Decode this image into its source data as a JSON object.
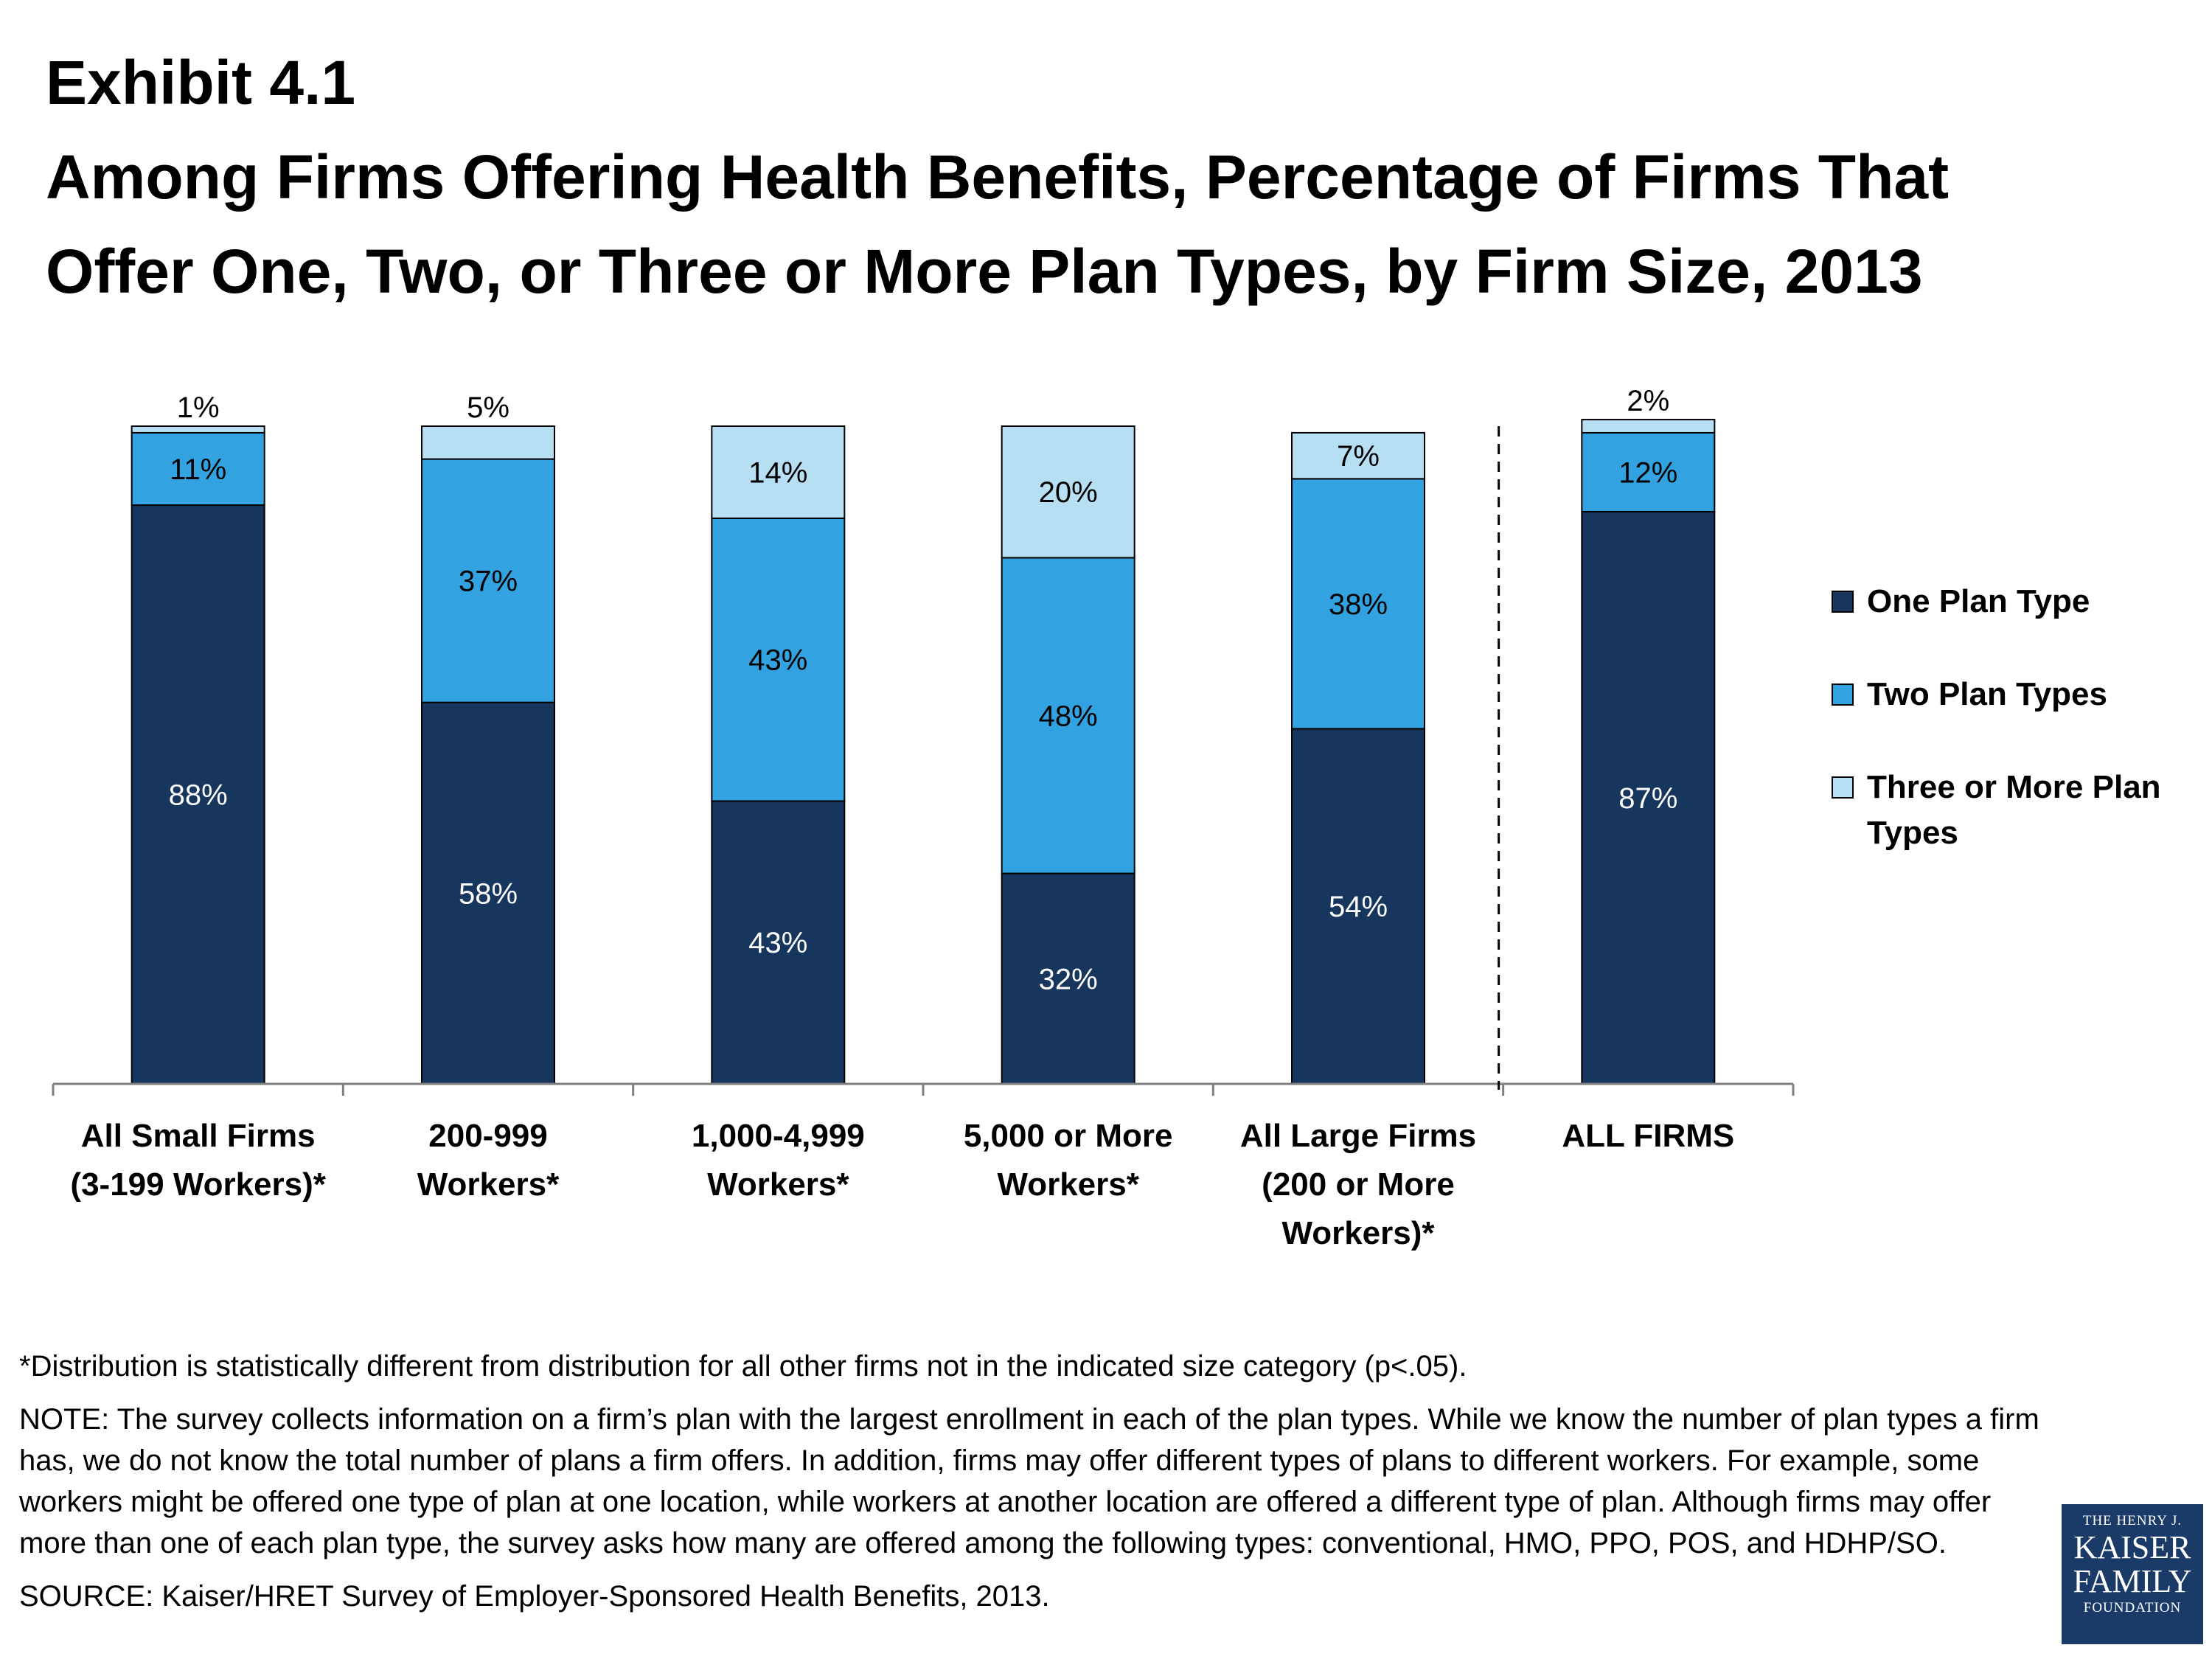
{
  "header": {
    "exhibit": "Exhibit 4.1",
    "title": "Among Firms Offering Health Benefits, Percentage of Firms That Offer One, Two, or Three or More Plan Types, by Firm Size, 2013"
  },
  "chart_data": {
    "type": "bar",
    "stacked": true,
    "categories": [
      [
        "All Small Firms",
        "(3-199 Workers)*"
      ],
      [
        "200-999",
        "Workers*"
      ],
      [
        "1,000-4,999",
        "Workers*"
      ],
      [
        "5,000 or More",
        "Workers*"
      ],
      [
        "All Large Firms",
        "(200 or More",
        "Workers)*"
      ],
      [
        "ALL FIRMS"
      ]
    ],
    "series": [
      {
        "name": "One Plan Type",
        "color": "#17365d",
        "values": [
          88,
          58,
          43,
          32,
          54,
          87
        ],
        "labels": [
          "88%",
          "58%",
          "43%",
          "32%",
          "54%",
          "87%"
        ]
      },
      {
        "name": "Two Plan Types",
        "color": "#33a2e0",
        "values": [
          11,
          37,
          43,
          48,
          38,
          12
        ],
        "labels": [
          "11%",
          "37%",
          "43%",
          "48%",
          "38%",
          "12%"
        ]
      },
      {
        "name": "Three or More Plan Types",
        "color": "#b7dff4",
        "values": [
          1,
          5,
          14,
          20,
          7,
          2
        ],
        "labels": [
          "1%",
          "5%",
          "14%",
          "20%",
          "7%",
          "2%"
        ]
      }
    ],
    "ylim": [
      0,
      100
    ],
    "legend_position": "right",
    "grid": false,
    "separator_before_category": 5
  },
  "notes": {
    "footnote": "*Distribution is statistically different from distribution for all other firms not in the indicated size category (p<.05).",
    "note": "NOTE:  The survey collects information on a firm’s plan with the largest enrollment in each of the plan types. While we know the number of plan types a firm has, we do not know the total number of plans a firm offers. In addition, firms may offer different types of plans to different workers. For example, some workers might be offered one type of plan at one location, while workers at another location are offered a different type of plan.  Although firms may offer more than one of each plan type, the survey asks how many are offered among the following types: conventional, HMO, PPO, POS, and HDHP/SO.",
    "source": "SOURCE: Kaiser/HRET Survey of Employer-Sponsored Health Benefits, 2013."
  },
  "logo": {
    "line1": "THE HENRY J.",
    "line2": "KAISER",
    "line3": "FAMILY",
    "line4": "FOUNDATION"
  }
}
